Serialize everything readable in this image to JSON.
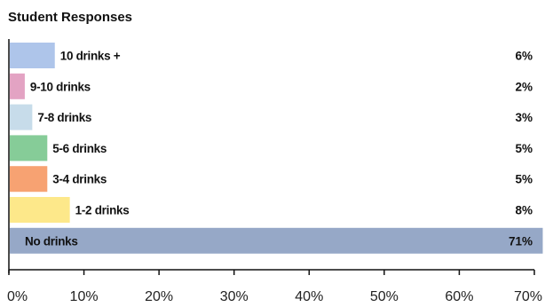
{
  "chart_data": {
    "type": "bar",
    "orientation": "horizontal",
    "title": "Student Responses",
    "categories": [
      "10 drinks +",
      "9-10 drinks",
      "7-8 drinks",
      "5-6 drinks",
      "3-4 drinks",
      "1-2 drinks",
      "No drinks"
    ],
    "values": [
      6,
      2,
      3,
      5,
      5,
      8,
      71
    ],
    "value_labels": [
      "6%",
      "2%",
      "3%",
      "5%",
      "5%",
      "8%",
      "71%"
    ],
    "colors": [
      "#aec5ea",
      "#e3a3c3",
      "#c7dcea",
      "#86cc98",
      "#f7a272",
      "#fde88a",
      "#96a8c7"
    ],
    "xlim": [
      0,
      70
    ],
    "xticks": [
      0,
      10,
      20,
      30,
      40,
      50,
      60,
      70
    ],
    "xtick_labels": [
      "0%",
      "10%",
      "20%",
      "30%",
      "40%",
      "50%",
      "60%",
      "70%"
    ],
    "xlabel": "",
    "ylabel": "",
    "grid": false,
    "legend": "none"
  }
}
